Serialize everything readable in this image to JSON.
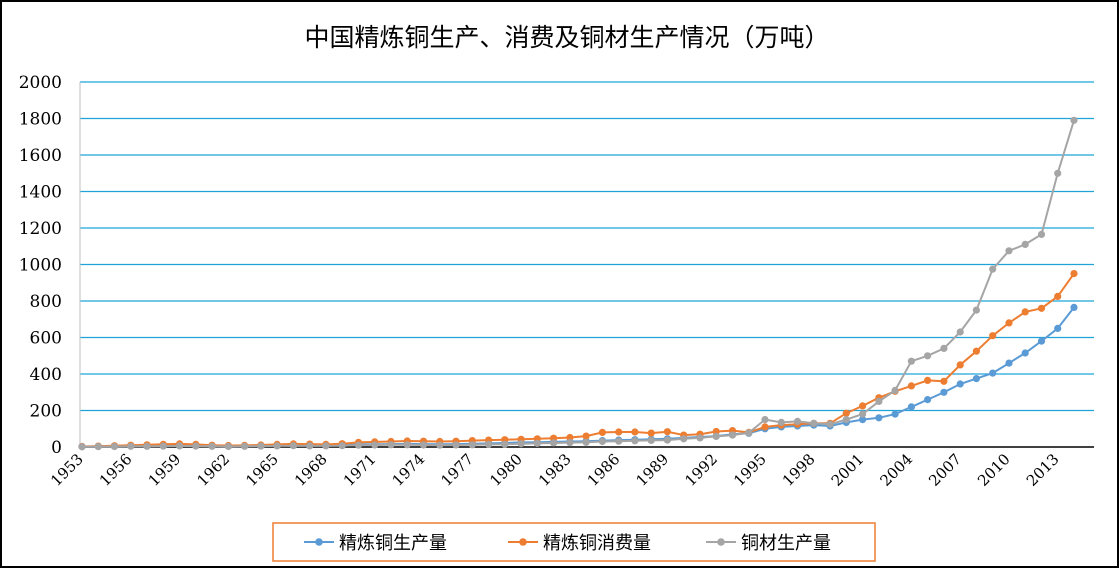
{
  "chart_data": {
    "type": "line",
    "title": "中国精炼铜生产、消费及铜材生产情况（万吨）",
    "xlabel": "",
    "ylabel": "",
    "x": [
      1953,
      1954,
      1955,
      1956,
      1957,
      1958,
      1959,
      1960,
      1961,
      1962,
      1963,
      1964,
      1965,
      1966,
      1967,
      1968,
      1969,
      1970,
      1971,
      1972,
      1973,
      1974,
      1975,
      1976,
      1977,
      1978,
      1979,
      1980,
      1981,
      1982,
      1983,
      1984,
      1985,
      1986,
      1987,
      1988,
      1989,
      1990,
      1991,
      1992,
      1993,
      1994,
      1995,
      1996,
      1997,
      1998,
      1999,
      2000,
      2001,
      2002,
      2003,
      2004,
      2005,
      2006,
      2007,
      2008,
      2009,
      2010,
      2011,
      2012,
      2013,
      2014
    ],
    "x_tick_labels": [
      "1953",
      "1956",
      "1959",
      "1962",
      "1965",
      "1968",
      "1971",
      "1974",
      "1977",
      "1980",
      "1983",
      "1986",
      "1989",
      "1992",
      "1995",
      "1998",
      "2001",
      "2004",
      "2007",
      "2010",
      "2013"
    ],
    "y_ticks": [
      "0",
      "200",
      "400",
      "600",
      "800",
      "1000",
      "1200",
      "1400",
      "1600",
      "1800",
      "2000"
    ],
    "ylim": [
      0,
      2000
    ],
    "grid": true,
    "legend_position": "bottom",
    "series": [
      {
        "name": "精炼铜生产量",
        "color": "#5B9BD5",
        "values": [
          2,
          3,
          4,
          6,
          5,
          7,
          9,
          8,
          6,
          5,
          6,
          7,
          9,
          10,
          9,
          9,
          10,
          14,
          15,
          16,
          17,
          16,
          15,
          16,
          18,
          20,
          22,
          25,
          26,
          28,
          30,
          32,
          35,
          38,
          40,
          42,
          45,
          50,
          55,
          60,
          70,
          75,
          100,
          110,
          115,
          120,
          115,
          135,
          150,
          160,
          180,
          220,
          260,
          300,
          345,
          375,
          405,
          460,
          515,
          580,
          650,
          765
        ]
      },
      {
        "name": "精炼铜消费量",
        "color": "#ED7D31",
        "values": [
          3,
          5,
          7,
          10,
          12,
          15,
          17,
          14,
          10,
          8,
          9,
          11,
          14,
          17,
          16,
          14,
          18,
          25,
          28,
          30,
          33,
          32,
          30,
          32,
          35,
          38,
          40,
          42,
          45,
          48,
          52,
          60,
          80,
          82,
          82,
          76,
          84,
          65,
          70,
          85,
          90,
          80,
          110,
          120,
          125,
          130,
          130,
          185,
          225,
          270,
          305,
          335,
          365,
          360,
          450,
          525,
          610,
          680,
          740,
          760,
          825,
          950
        ]
      },
      {
        "name": "铜材生产量",
        "color": "#A5A5A5",
        "values": [
          1,
          2,
          3,
          4,
          4,
          5,
          6,
          5,
          4,
          3,
          4,
          5,
          6,
          7,
          6,
          6,
          7,
          10,
          11,
          12,
          12,
          11,
          10,
          11,
          12,
          14,
          15,
          18,
          20,
          22,
          24,
          26,
          30,
          32,
          34,
          36,
          38,
          45,
          50,
          58,
          65,
          78,
          150,
          135,
          140,
          130,
          125,
          150,
          180,
          250,
          310,
          470,
          500,
          540,
          630,
          750,
          975,
          1075,
          1110,
          1165,
          1500,
          1790
        ]
      }
    ]
  }
}
